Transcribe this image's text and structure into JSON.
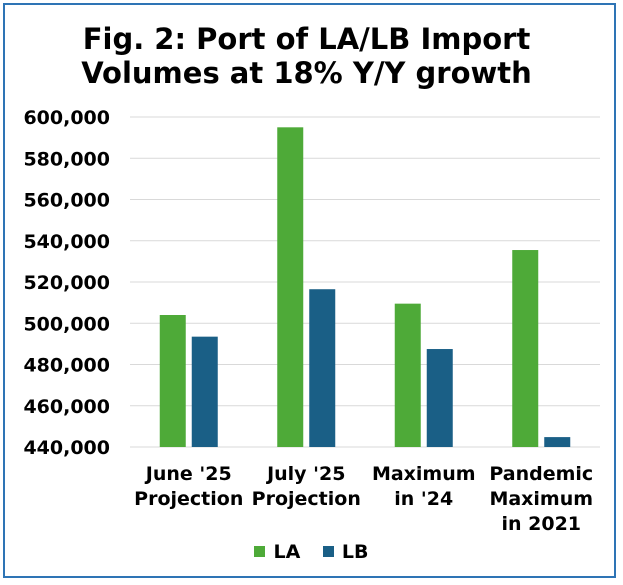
{
  "chart_data": {
    "type": "bar",
    "title_lines": [
      "Fig. 2: Port of LA/LB Import",
      "Volumes at 18% Y/Y growth"
    ],
    "categories": [
      [
        "June '25",
        "Projection"
      ],
      [
        "July '25",
        "Projection"
      ],
      [
        "Maximum",
        "in '24"
      ],
      [
        "Pandemic",
        "Maximum",
        "in 2021"
      ]
    ],
    "series": [
      {
        "name": "LA",
        "color": "#4eaa38",
        "values": [
          504000,
          595000,
          509500,
          535500
        ]
      },
      {
        "name": "LB",
        "color": "#1a5f86",
        "values": [
          493500,
          516500,
          487500,
          444800
        ]
      }
    ],
    "ylim": [
      440000,
      600000
    ],
    "yticks": [
      "440,000",
      "460,000",
      "480,000",
      "500,000",
      "520,000",
      "540,000",
      "560,000",
      "580,000",
      "600,000"
    ],
    "ytick_values": [
      440000,
      460000,
      480000,
      500000,
      520000,
      540000,
      560000,
      580000,
      600000
    ],
    "grid": true,
    "grid_color": "#d9d9d9",
    "legend_position": "bottom",
    "border_color": "#2e74b5"
  }
}
